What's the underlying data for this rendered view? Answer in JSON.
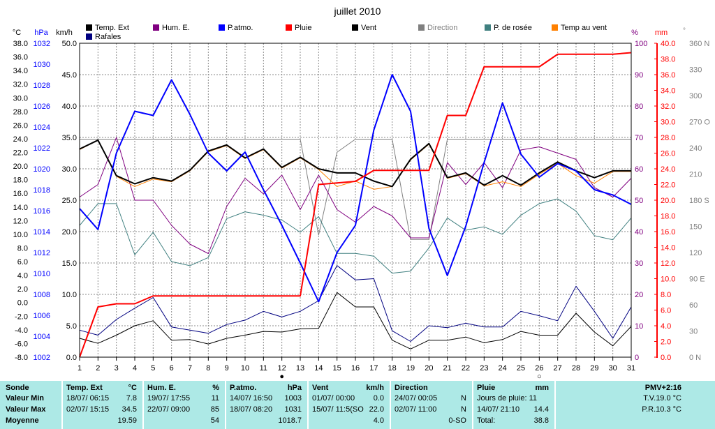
{
  "title": "juillet 2010",
  "legend": [
    {
      "label": "Temp. Ext",
      "color": "#000000"
    },
    {
      "label": "Hum. E.",
      "color": "#800080"
    },
    {
      "label": "P.atmo.",
      "color": "#0000ff"
    },
    {
      "label": "Pluie",
      "color": "#ff0000"
    },
    {
      "label": "Vent",
      "color": "#000000"
    },
    {
      "label": "Direction",
      "color": "#808080"
    },
    {
      "label": "P. de rosée",
      "color": "#408080"
    },
    {
      "label": "Temp au vent",
      "color": "#ff8000"
    },
    {
      "label": "Rafales",
      "color": "#000080"
    }
  ],
  "axis_units": {
    "temp": "°C",
    "press": "hPa",
    "wind": "km/h",
    "hum": "%",
    "rain": "mm",
    "dir": "°"
  },
  "chart_data": {
    "type": "line",
    "xlabel": "",
    "x": [
      1,
      2,
      3,
      4,
      5,
      6,
      7,
      8,
      9,
      10,
      11,
      12,
      13,
      14,
      15,
      16,
      17,
      18,
      19,
      20,
      21,
      22,
      23,
      24,
      25,
      26,
      27,
      28,
      29,
      30,
      31
    ],
    "axes": {
      "temp_c": {
        "min": -8,
        "max": 38,
        "ticks": [
          "38.0",
          "36.0",
          "34.0",
          "32.0",
          "30.0",
          "28.0",
          "26.0",
          "24.0",
          "22.0",
          "20.0",
          "18.0",
          "16.0",
          "14.0",
          "12.0",
          "10.0",
          "8.0",
          "6.0",
          "4.0",
          "2.0",
          "0.0",
          "-2.0",
          "-4.0",
          "-6.0",
          "-8.0"
        ]
      },
      "pressure_hpa": {
        "min": 1002,
        "max": 1032,
        "ticks": [
          "1032",
          "1030",
          "1028",
          "1026",
          "1024",
          "1022",
          "1020",
          "1018",
          "1016",
          "1014",
          "1012",
          "1010",
          "1008",
          "1006",
          "1004",
          "1002"
        ]
      },
      "wind_kmh": {
        "min": 0,
        "max": 50,
        "ticks": [
          "50.0",
          "45.0",
          "40.0",
          "35.0",
          "30.0",
          "25.0",
          "20.0",
          "15.0",
          "10.0",
          "5.0",
          "0.0"
        ]
      },
      "humidity_pct": {
        "min": 0,
        "max": 100,
        "ticks": [
          "100",
          "90",
          "80",
          "70",
          "60",
          "50",
          "40",
          "30",
          "20",
          "10",
          "0"
        ]
      },
      "rain_mm": {
        "min": 0,
        "max": 40,
        "ticks": [
          "40.0",
          "38.0",
          "36.0",
          "34.0",
          "32.0",
          "30.0",
          "28.0",
          "26.0",
          "24.0",
          "22.0",
          "20.0",
          "18.0",
          "16.0",
          "14.0",
          "12.0",
          "10.0",
          "8.0",
          "6.0",
          "4.0",
          "2.0",
          "0.0"
        ]
      },
      "direction_deg": {
        "min": 0,
        "max": 360,
        "ticks": [
          "360 N",
          "330",
          "300",
          "270 O",
          "240",
          "210",
          "180 S",
          "150",
          "120",
          "90 E",
          "60",
          "30",
          "0 N"
        ]
      }
    },
    "series": [
      {
        "name": "Temp. Ext",
        "axis": "temp_c",
        "color": "#000000",
        "width": 2,
        "values": [
          22.5,
          23.8,
          18.6,
          17.4,
          18.3,
          17.8,
          19.4,
          22.2,
          23.1,
          21.2,
          22.5,
          19.8,
          21.3,
          19.6,
          19.0,
          19.0,
          17.8,
          17.0,
          21.0,
          23.3,
          18.3,
          19.0,
          17.2,
          18.6,
          17.2,
          19.0,
          20.6,
          19.3,
          18.3,
          19.3,
          19.3
        ]
      },
      {
        "name": "Temp au vent",
        "axis": "temp_c",
        "color": "#ff8000",
        "width": 1,
        "values": [
          22.4,
          23.8,
          18.5,
          17.0,
          18.1,
          17.7,
          19.3,
          22.1,
          23.0,
          21.1,
          22.4,
          19.7,
          21.2,
          19.5,
          17.0,
          17.8,
          16.6,
          17.0,
          20.9,
          23.2,
          18.2,
          18.9,
          17.1,
          17.7,
          17.0,
          18.8,
          20.4,
          18.6,
          17.5,
          19.2,
          19.2
        ]
      },
      {
        "name": "Hum. E.",
        "axis": "humidity_pct",
        "color": "#800080",
        "width": 1,
        "values": [
          51,
          55,
          70,
          50,
          50,
          42,
          36,
          33,
          48,
          57,
          52,
          58,
          47,
          58,
          47,
          43,
          48,
          45,
          38,
          38,
          62,
          55,
          62,
          54,
          66,
          67,
          65,
          63,
          54,
          51,
          57
        ]
      },
      {
        "name": "P. de rosée",
        "axis": "temp_c",
        "color": "#408080",
        "width": 1,
        "values": [
          11.3,
          14.5,
          14.5,
          7.0,
          10.3,
          6.0,
          5.4,
          6.6,
          12.3,
          13.3,
          12.8,
          12.1,
          10.3,
          12.6,
          7.2,
          7.2,
          6.8,
          4.3,
          4.6,
          8.0,
          12.4,
          10.6,
          11.1,
          10.0,
          12.8,
          14.5,
          15.2,
          13.4,
          9.8,
          9.2,
          12.4
        ]
      },
      {
        "name": "P.atmo.",
        "axis": "pressure_hpa",
        "color": "#0000ff",
        "width": 2,
        "values": [
          1016.2,
          1014.2,
          1021.5,
          1025.5,
          1025.1,
          1028.5,
          1025.2,
          1021.5,
          1019.8,
          1021.6,
          1018.0,
          1014.6,
          1011.0,
          1007.3,
          1012.0,
          1014.6,
          1023.7,
          1029.0,
          1025.5,
          1014.3,
          1009.8,
          1014.5,
          1020.6,
          1026.3,
          1021.4,
          1019.2,
          1020.5,
          1019.8,
          1018.0,
          1017.5,
          1016.6
        ]
      },
      {
        "name": "Vent",
        "axis": "wind_kmh",
        "color": "#000000",
        "width": 1,
        "values": [
          3.0,
          2.2,
          3.5,
          5.0,
          5.8,
          2.7,
          2.8,
          2.1,
          3.0,
          3.5,
          4.1,
          4.0,
          4.5,
          4.6,
          10.3,
          8.0,
          8.0,
          2.7,
          1.3,
          2.7,
          2.7,
          3.2,
          2.3,
          2.8,
          4.1,
          3.5,
          3.5,
          7.0,
          4.0,
          1.8,
          4.9
        ]
      },
      {
        "name": "Rafales",
        "axis": "wind_kmh",
        "color": "#000080",
        "width": 1,
        "values": [
          4.3,
          3.5,
          6.0,
          7.8,
          9.5,
          4.8,
          4.3,
          3.8,
          5.2,
          5.9,
          7.3,
          6.4,
          7.3,
          9.0,
          14.6,
          12.3,
          12.5,
          4.2,
          2.5,
          5.0,
          4.7,
          5.4,
          4.8,
          4.8,
          7.3,
          6.6,
          5.8,
          11.3,
          7.3,
          3.0,
          8.0
        ]
      },
      {
        "name": "Direction",
        "axis": "direction_deg",
        "color": "#808080",
        "width": 1,
        "values": [
          250,
          250,
          250,
          250,
          250,
          250,
          250,
          250,
          250,
          250,
          250,
          250,
          250,
          140,
          235,
          250,
          250,
          250,
          135,
          135,
          250,
          250,
          250,
          250,
          250,
          250,
          250,
          250,
          250,
          250,
          250
        ]
      },
      {
        "name": "Pluie",
        "axis": "rain_mm",
        "color": "#ff0000",
        "width": 2,
        "step": true,
        "values": [
          0.0,
          6.4,
          6.8,
          6.8,
          7.8,
          7.8,
          7.8,
          7.8,
          7.8,
          7.8,
          7.8,
          7.8,
          7.8,
          22.0,
          22.2,
          22.4,
          23.8,
          23.8,
          23.8,
          23.8,
          30.8,
          30.8,
          37.0,
          37.0,
          37.0,
          37.0,
          38.6,
          38.6,
          38.6,
          38.6,
          38.8
        ]
      }
    ],
    "markers": [
      {
        "day": 12,
        "symbol": "●"
      },
      {
        "day": 26,
        "symbol": "○"
      }
    ]
  },
  "footer": {
    "sonde": {
      "header": "Sonde",
      "rows": [
        "Valeur Min",
        "Valeur Max",
        "Moyenne"
      ]
    },
    "temp": {
      "header": "Temp. Ext",
      "unit": "°C",
      "min_date": "18/07/  06:15",
      "min_val": "7.8",
      "max_date": "02/07/  15:15",
      "max_val": "34.5",
      "avg": "19.59"
    },
    "hum": {
      "header": "Hum. E.",
      "unit": "%",
      "min_date": "19/07/  17:55",
      "min_val": "11",
      "max_date": "22/07/  09:00",
      "max_val": "85",
      "avg": "54"
    },
    "press": {
      "header": "P.atmo.",
      "unit": "hPa",
      "min_date": "14/07/  16:50",
      "min_val": "1003",
      "max_date": "18/07/  08:20",
      "max_val": "1031",
      "avg": "1018.7"
    },
    "wind": {
      "header": "Vent",
      "unit": "km/h",
      "min_date": "01/07/  00:00",
      "min_val": "0.0",
      "max_date": "15/07/  11:5(SO",
      "max_val": "22.0",
      "avg": "4.0"
    },
    "dir": {
      "header": "Direction",
      "min_date": "24/07/  00:05",
      "min_val": "N",
      "max_date": "02/07/  11:00",
      "max_val": "N",
      "avg": "0-SO"
    },
    "rain": {
      "header": "Pluie",
      "unit": "mm",
      "row1": "Jours de pluie: 11",
      "max_date": "14/07/  21:10",
      "max_val": "14.4",
      "total_label": "Total:",
      "total": "38.8"
    },
    "pmv": {
      "header": "PMV+2:16",
      "tv": "T.V.19.0 °C",
      "pr": "P.R.10.3 °C"
    }
  }
}
